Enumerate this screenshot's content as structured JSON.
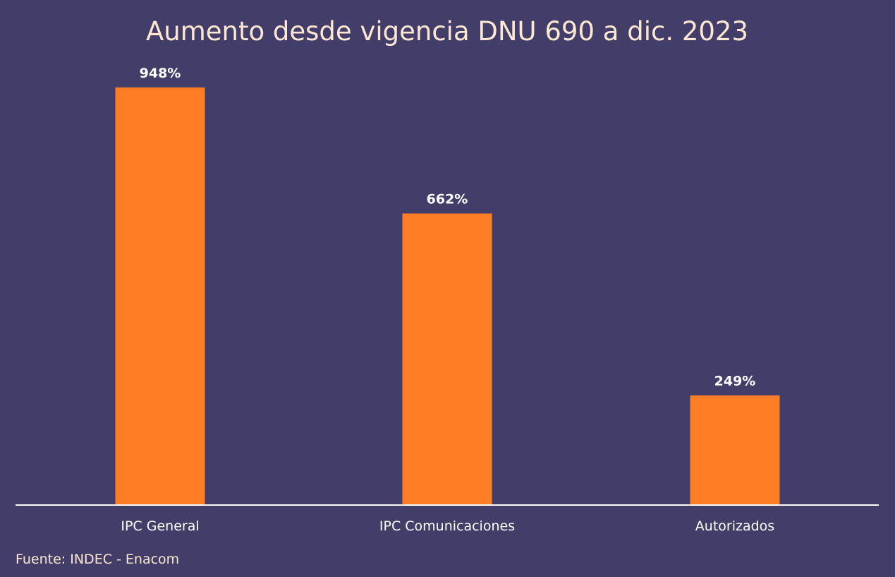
{
  "colors": {
    "background": "#433e69",
    "bar": "#fe7d25",
    "title": "#fbe7d2",
    "labels": "#ffffff",
    "axis": "#ffffff"
  },
  "source": "Fuente: INDEC - Enacom",
  "chart_data": {
    "type": "bar",
    "title": "Aumento desde vigencia DNU 690 a dic. 2023",
    "categories": [
      "IPC General",
      "IPC Comunicaciones",
      "Autorizados"
    ],
    "values": [
      948,
      662,
      249
    ],
    "value_labels": [
      "948%",
      "662%",
      "249%"
    ],
    "xlabel": "",
    "ylabel": "",
    "ylim": [
      0,
      948
    ],
    "grid": false,
    "legend": "none"
  }
}
